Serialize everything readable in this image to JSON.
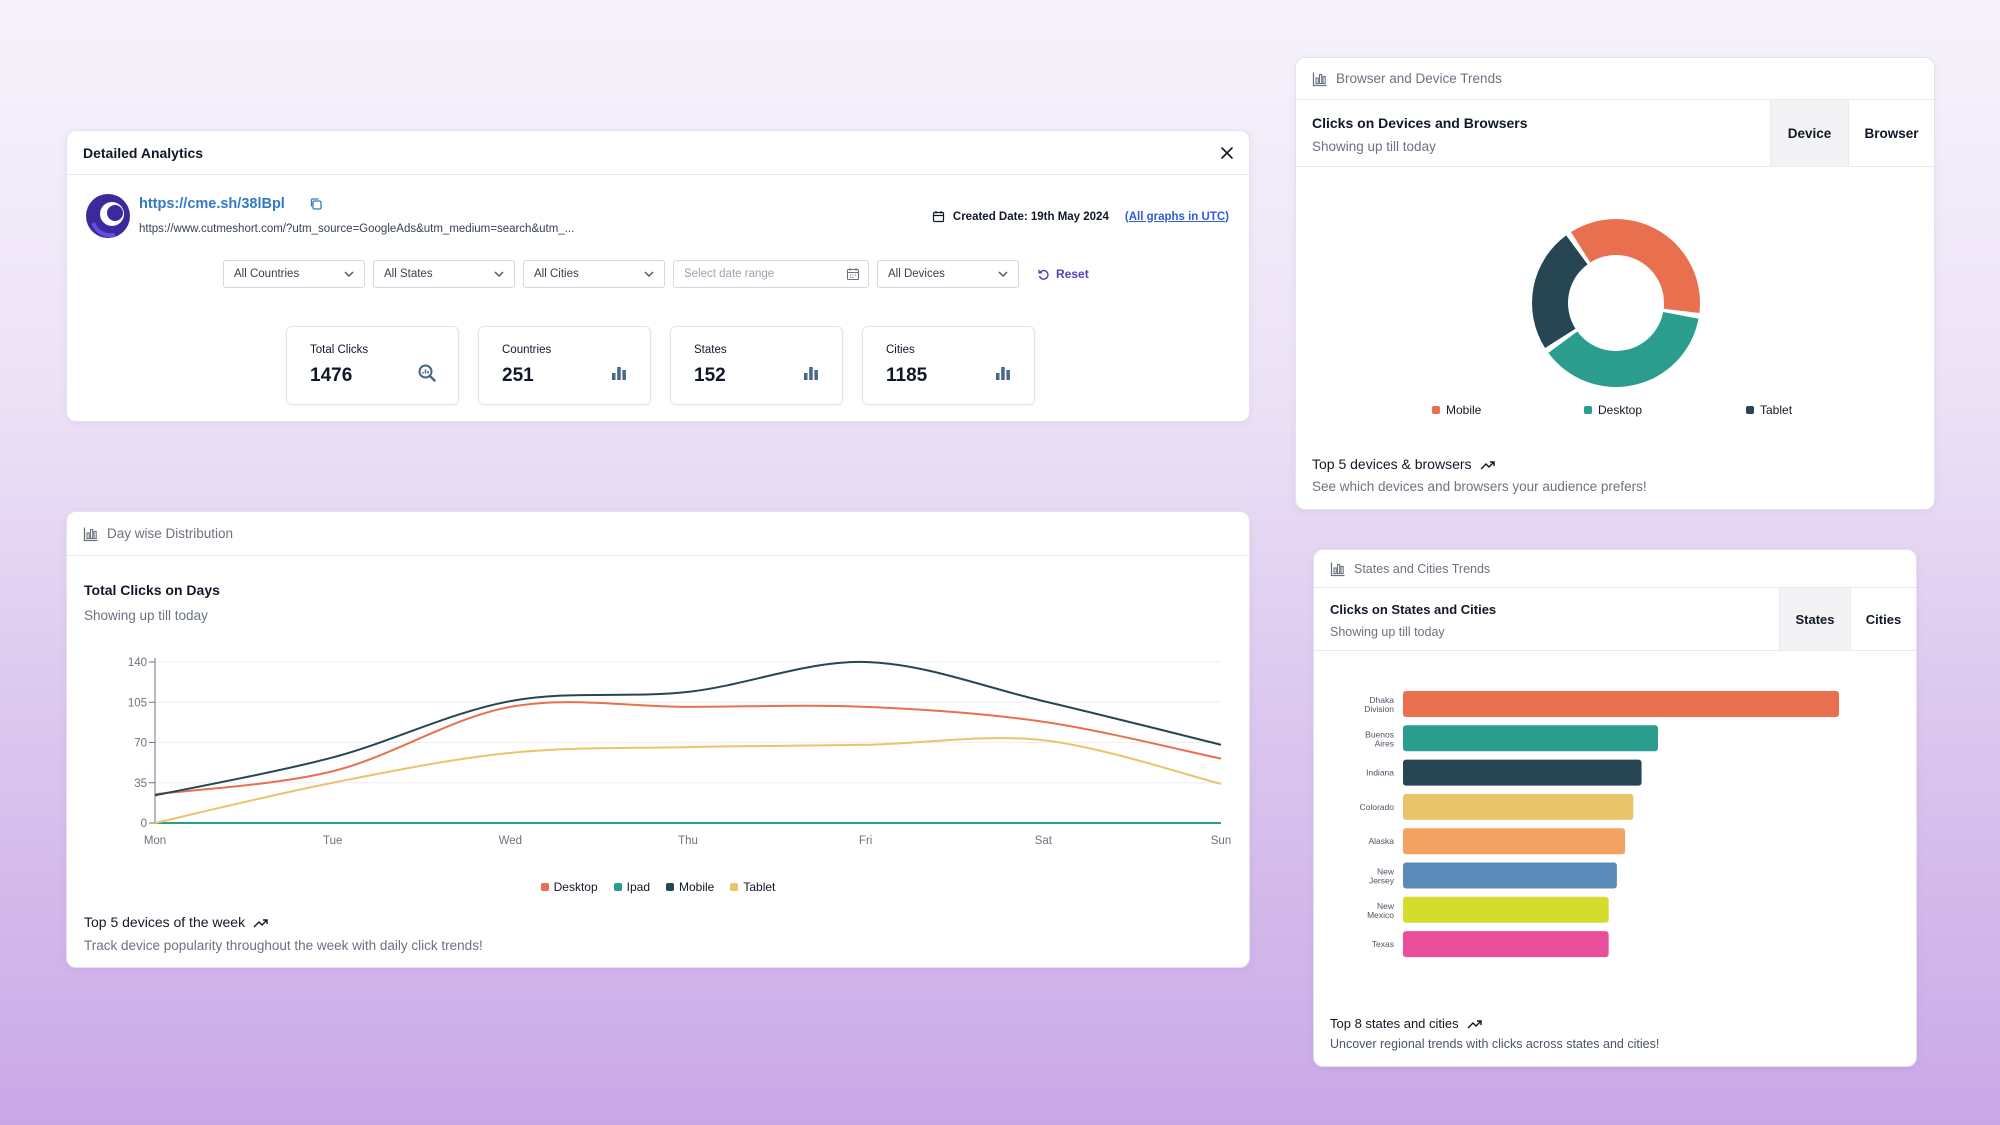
{
  "analytics": {
    "title": "Detailed Analytics",
    "short_url": "https://cme.sh/38lBpl",
    "long_url": "https://www.cutmeshort.com/?utm_source=GoogleAds&utm_medium=search&utm_...",
    "created_label": "Created Date: 19th May 2024",
    "utc_link": "(All graphs in UTC)",
    "filters": {
      "countries": "All Countries",
      "states": "All States",
      "cities": "All Cities",
      "date_placeholder": "Select date range",
      "devices": "All Devices",
      "reset": "Reset"
    },
    "stats": [
      {
        "label": "Total Clicks",
        "value": "1476",
        "icon": "search-chart-icon"
      },
      {
        "label": "Countries",
        "value": "251",
        "icon": "bar-chart-icon"
      },
      {
        "label": "States",
        "value": "152",
        "icon": "bar-chart-icon"
      },
      {
        "label": "Cities",
        "value": "1185",
        "icon": "bar-chart-icon"
      }
    ]
  },
  "daywise": {
    "header": "Day wise Distribution",
    "title": "Total Clicks on Days",
    "subtitle": "Showing up till today",
    "footer_title": "Top 5 devices of the week",
    "footer_sub": "Track device popularity throughout the week with daily click trends!"
  },
  "devices": {
    "header": "Browser and Device Trends",
    "title": "Clicks on Devices and Browsers",
    "subtitle": "Showing up till today",
    "tabs": [
      "Device",
      "Browser"
    ],
    "active_tab": "Device",
    "footer_title": "Top 5 devices & browsers",
    "footer_sub": "See which devices and browsers your audience prefers!"
  },
  "states": {
    "header": "States and Cities Trends",
    "title": "Clicks on States and Cities",
    "subtitle": "Showing up till today",
    "tabs": [
      "States",
      "Cities"
    ],
    "active_tab": "States",
    "footer_title": "Top 8 states and cities",
    "footer_sub": "Uncover regional trends with clicks across states and cities!"
  },
  "chart_data": [
    {
      "type": "line",
      "x": [
        "Mon",
        "Tue",
        "Wed",
        "Thu",
        "Fri",
        "Sat",
        "Sun"
      ],
      "ylim": [
        0,
        140
      ],
      "yticks": [
        0,
        35,
        70,
        105,
        140
      ],
      "grid": true,
      "legend": "bottom",
      "series": [
        {
          "name": "Desktop",
          "color": "#e8704f",
          "values": [
            25,
            45,
            101,
            101,
            101,
            88,
            56
          ]
        },
        {
          "name": "Ipad",
          "color": "#2a9d8f",
          "values": [
            0,
            0,
            0,
            0,
            0,
            0,
            0
          ]
        },
        {
          "name": "Mobile",
          "color": "#264653",
          "values": [
            24,
            57,
            106,
            114,
            140,
            106,
            68
          ]
        },
        {
          "name": "Tablet",
          "color": "#e9c46a",
          "values": [
            0,
            35,
            61,
            66,
            68,
            72,
            34
          ]
        }
      ]
    },
    {
      "type": "pie",
      "donut": true,
      "legend": "bottom",
      "categories": [
        "Mobile",
        "Desktop",
        "Tablet"
      ],
      "values": [
        37,
        38,
        25
      ],
      "colors": [
        "#e8704f",
        "#2a9d8f",
        "#264653"
      ]
    },
    {
      "type": "bar",
      "orientation": "horizontal",
      "categories": [
        "Dhaka Division",
        "Buenos Aires",
        "Indiana",
        "Colorado",
        "Alaska",
        "New Jersey",
        "New Mexico",
        "Texas"
      ],
      "values": [
        53,
        31,
        29,
        28,
        27,
        26,
        25,
        25
      ],
      "colors": [
        "#e8704f",
        "#2a9d8f",
        "#264653",
        "#e9c46a",
        "#f4a261",
        "#5b8ab8",
        "#d4dd2c",
        "#e84e9a"
      ]
    }
  ]
}
